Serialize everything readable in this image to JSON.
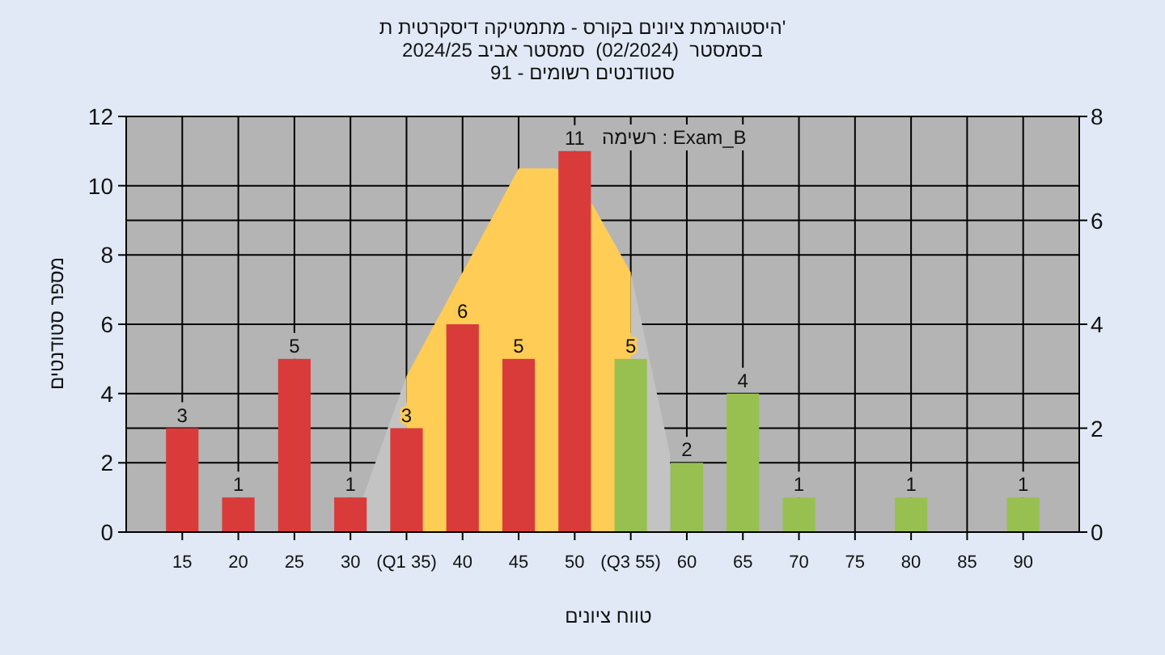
{
  "chart_data": {
    "type": "bar",
    "title": "היסטוגרמת ציונים בקורס - מתמטיקה דיסקרטית ת'",
    "subtitle": "בסמסטר  (02/2024)  סמסטר אביב 2024/25",
    "annotations": [
      "סטודנטים רשומים - 91",
      "רשימה : Exam_B"
    ],
    "xlabel": "טווח ציונים",
    "ylabel": "מספר סטודנטים",
    "xlim": [
      10,
      95
    ],
    "xticks": [
      15,
      20,
      25,
      30,
      {
        "value": 35,
        "label": "(Q1 35)"
      },
      40,
      45,
      50,
      {
        "value": 55,
        "label": "(Q3 55)"
      },
      60,
      65,
      70,
      75,
      80,
      85,
      90
    ],
    "series": [
      {
        "x": [
          15,
          20,
          25,
          30,
          35,
          40,
          45,
          50,
          55,
          60,
          65,
          70,
          80,
          90
        ],
        "values": [
          3,
          1,
          5,
          1,
          3,
          6,
          5,
          11,
          5,
          2,
          4,
          1,
          1,
          1
        ],
        "value_labels": [
          "3",
          "1",
          "5",
          "1",
          "3",
          "6",
          "5",
          "11",
          "5",
          "2",
          "4",
          "1",
          "1",
          "1"
        ],
        "colors": [
          "#d93b3b",
          "#d93b3b",
          "#d93b3b",
          "#d93b3b",
          "#d93b3b",
          "#d93b3b",
          "#d93b3b",
          "#d93b3b",
          "#98c050",
          "#98c050",
          "#98c050",
          "#98c050",
          "#98c050",
          "#98c050"
        ]
      },
      {
        "type": "area",
        "axis": "y2",
        "color": "#c3c3c3",
        "x": [
          30,
          35
        ],
        "values": [
          0,
          3
        ]
      },
      {
        "type": "area",
        "axis": "y2",
        "color": "#c3c3c3",
        "x": [
          55,
          58.5
        ],
        "values": [
          5,
          1.5
        ]
      },
      {
        "type": "area",
        "axis": "y2",
        "color": "#ffcc55",
        "x": [
          35,
          40,
          45,
          48.4,
          51.6,
          55
        ],
        "values": [
          3,
          5,
          7,
          7,
          6.3,
          5
        ]
      }
    ],
    "ylim": [
      0,
      12
    ],
    "yticks": [
      0,
      2,
      4,
      6,
      8,
      10,
      12
    ],
    "y2lim": [
      0,
      8
    ],
    "y2ticks": [
      0,
      2,
      4,
      6,
      8
    ],
    "grid": true
  }
}
